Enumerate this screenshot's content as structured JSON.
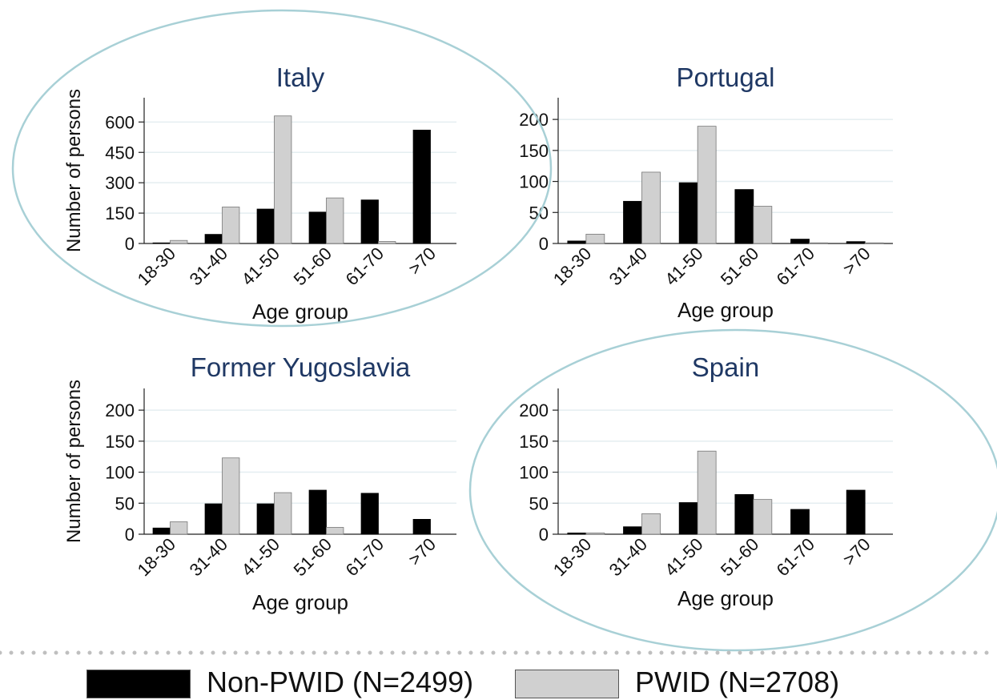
{
  "figure": {
    "colors": {
      "non_pwid": "#000000",
      "pwid": "#d0d0d0",
      "title_color": "#1f3864",
      "gridline": "#e4eef1",
      "highlight_ellipse": "#a8d0d6",
      "dotted_divider": "#bfbfbf"
    }
  },
  "legend": {
    "items": [
      {
        "label": "Non-PWID (N=2499)",
        "color": "#000000"
      },
      {
        "label": "PWID (N=2708)",
        "color": "#d0d0d0"
      }
    ]
  },
  "chart_data": [
    {
      "type": "bar",
      "title": "Italy",
      "xlabel": "Age group",
      "ylabel": "Number of persons",
      "categories": [
        "18-30",
        "31-40",
        "41-50",
        "51-60",
        "61-70",
        ">70"
      ],
      "yticks": [
        0,
        150,
        300,
        450,
        600
      ],
      "ylim": [
        0,
        720
      ],
      "grid": true,
      "highlighted": true,
      "series": [
        {
          "name": "Non-PWID (N=2499)",
          "values": [
            3,
            45,
            170,
            155,
            215,
            560
          ]
        },
        {
          "name": "PWID (N=2708)",
          "values": [
            15,
            180,
            630,
            225,
            10,
            0
          ]
        }
      ]
    },
    {
      "type": "bar",
      "title": "Portugal",
      "xlabel": "Age group",
      "ylabel": "",
      "categories": [
        "18-30",
        "31-40",
        "41-50",
        "51-60",
        "61-70",
        ">70"
      ],
      "yticks": [
        0,
        50,
        100,
        150,
        200
      ],
      "ylim": [
        0,
        235
      ],
      "grid": true,
      "highlighted": false,
      "series": [
        {
          "name": "Non-PWID (N=2499)",
          "values": [
            4,
            68,
            98,
            87,
            7,
            3
          ]
        },
        {
          "name": "PWID (N=2708)",
          "values": [
            15,
            115,
            189,
            60,
            1,
            1
          ]
        }
      ]
    },
    {
      "type": "bar",
      "title": "Former Yugoslavia",
      "xlabel": "Age group",
      "ylabel": "Number of persons",
      "categories": [
        "18-30",
        "31-40",
        "41-50",
        "51-60",
        "61-70",
        ">70"
      ],
      "yticks": [
        0,
        50,
        100,
        150,
        200
      ],
      "ylim": [
        0,
        235
      ],
      "grid": true,
      "highlighted": false,
      "series": [
        {
          "name": "Non-PWID (N=2499)",
          "values": [
            10,
            49,
            49,
            71,
            66,
            24
          ]
        },
        {
          "name": "PWID (N=2708)",
          "values": [
            20,
            123,
            67,
            11,
            0,
            0
          ]
        }
      ]
    },
    {
      "type": "bar",
      "title": "Spain",
      "xlabel": "Age group",
      "ylabel": "",
      "categories": [
        "18-30",
        "31-40",
        "41-50",
        "51-60",
        "61-70",
        ">70"
      ],
      "yticks": [
        0,
        50,
        100,
        150,
        200
      ],
      "ylim": [
        0,
        235
      ],
      "grid": true,
      "highlighted": true,
      "series": [
        {
          "name": "Non-PWID (N=2499)",
          "values": [
            2,
            12,
            51,
            64,
            40,
            71
          ]
        },
        {
          "name": "PWID (N=2708)",
          "values": [
            2,
            33,
            134,
            56,
            0,
            0
          ]
        }
      ]
    }
  ]
}
